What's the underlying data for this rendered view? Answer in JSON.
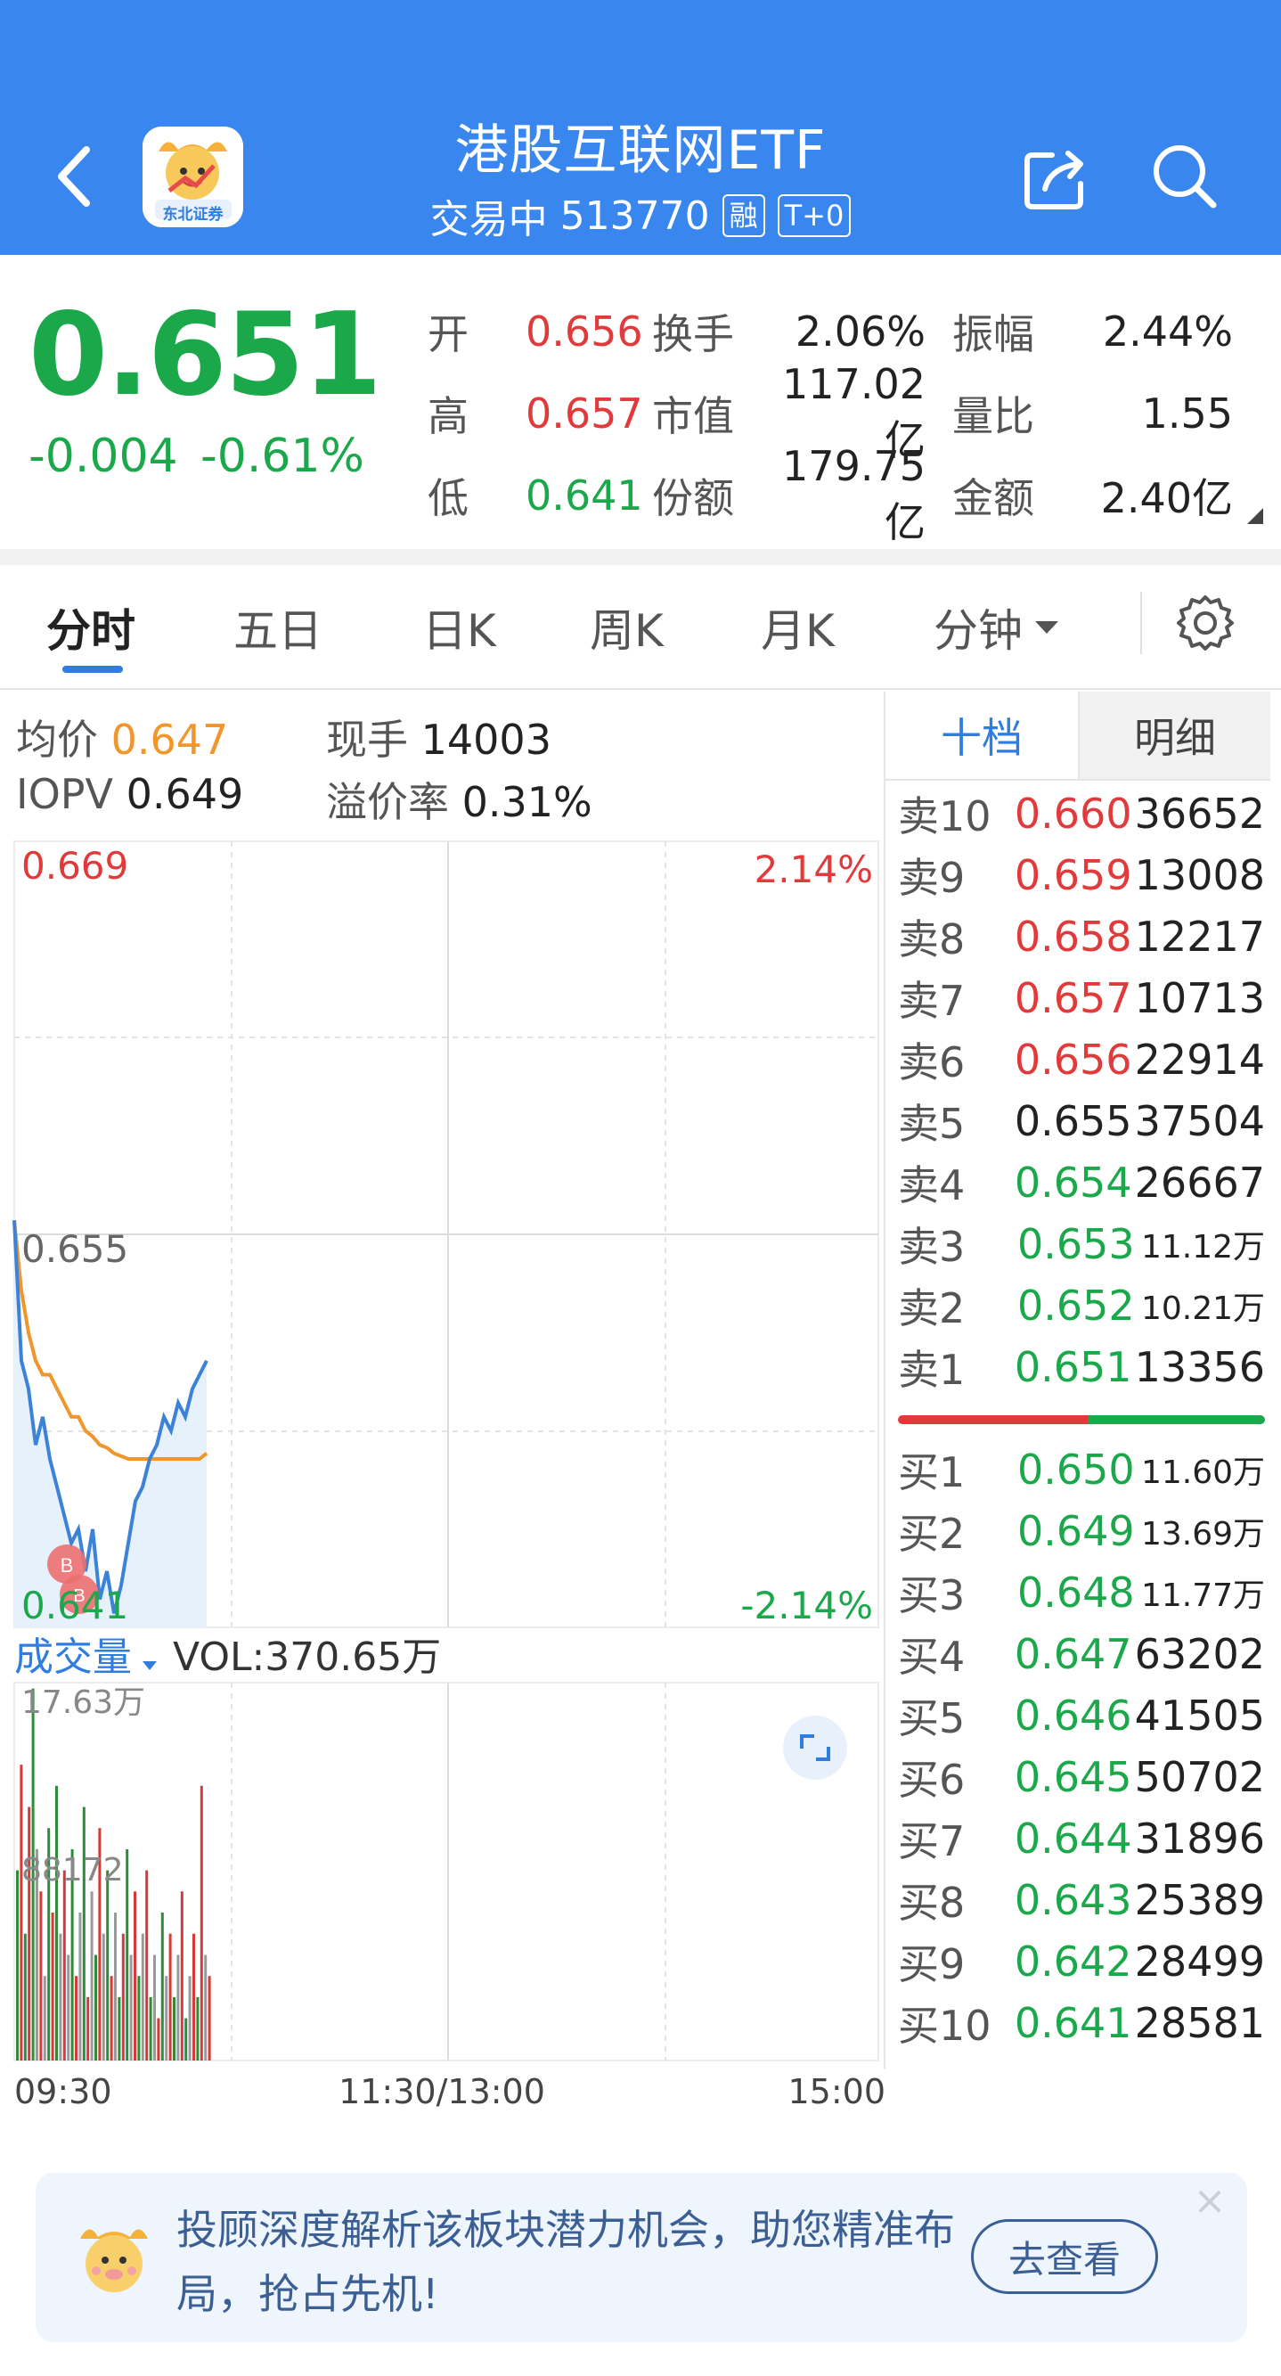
{
  "header": {
    "title": "港股互联网ETF",
    "status": "交易中",
    "code": "513770",
    "tag_margin": "融",
    "tag_t0": "T+0",
    "logo_text": "东北证券",
    "bg_color": "#3a86ef"
  },
  "quote": {
    "price": "0.651",
    "change": "-0.004",
    "change_pct": "-0.61%",
    "rows": [
      {
        "k1": "开",
        "v1": "0.656",
        "v1_color": "red",
        "k2": "换手",
        "v2": "2.06%",
        "k3": "振幅",
        "v3": "2.44%"
      },
      {
        "k1": "高",
        "v1": "0.657",
        "v1_color": "red",
        "k2": "市值",
        "v2": "117.02亿",
        "k3": "量比",
        "v3": "1.55"
      },
      {
        "k1": "低",
        "v1": "0.641",
        "v1_color": "green",
        "k2": "份额",
        "v2": "179.75亿",
        "k3": "金额",
        "v3": "2.40亿"
      }
    ]
  },
  "tabs": [
    "分时",
    "五日",
    "日K",
    "周K",
    "月K",
    "分钟"
  ],
  "tabs_active": "分时",
  "intraday": {
    "avg_label": "均价",
    "avg_value": "0.647",
    "hand_label": "现手",
    "hand_value": "14003",
    "iopv_label": "IOPV",
    "iopv_value": "0.649",
    "premium_label": "溢价率",
    "premium_value": "0.31%",
    "price_high": "0.669",
    "price_mid": "0.655",
    "price_low": "0.641",
    "pct_high": "2.14%",
    "pct_low": "-2.14%",
    "volume_label": "成交量",
    "volume_value": "VOL:370.65万",
    "vol_max": "17.63万",
    "vol_mid": "88172",
    "time_start": "09:30",
    "time_mid": "11:30/13:00",
    "time_end": "15:00",
    "marker": "B"
  },
  "chart_data": {
    "type": "line",
    "x_range": [
      "09:30",
      "15:00"
    ],
    "ylim": [
      0.641,
      0.669
    ],
    "reference_price": 0.655,
    "series": [
      {
        "name": "",
        "color": "#3b82d8",
        "values": [
          0.6555,
          0.6505,
          0.6495,
          0.6475,
          0.6485,
          0.647,
          0.646,
          0.645,
          0.644,
          0.6445,
          0.643,
          0.6445,
          0.642,
          0.643,
          0.6415,
          0.6425,
          0.644,
          0.6455,
          0.646,
          0.647,
          0.6475,
          0.6485,
          0.648,
          0.649,
          0.6485,
          0.6495,
          0.65,
          0.6505
        ]
      },
      {
        "name": "",
        "color": "#f0962d",
        "values": [
          0.6555,
          0.653,
          0.6515,
          0.6505,
          0.65,
          0.65,
          0.6495,
          0.649,
          0.6485,
          0.6485,
          0.648,
          0.6478,
          0.6475,
          0.6474,
          0.6472,
          0.6471,
          0.647,
          0.647,
          0.647,
          0.647,
          0.647,
          0.647,
          0.647,
          0.647,
          0.647,
          0.647,
          0.647,
          0.6472
        ]
      }
    ],
    "volume": [
      9,
      14,
      6,
      12,
      17.6,
      10,
      8,
      4,
      11,
      7,
      13,
      6,
      9,
      5,
      10,
      4,
      7,
      12,
      3,
      8,
      5,
      11,
      6,
      9,
      4,
      7,
      3,
      6,
      10,
      5,
      8,
      4,
      6,
      9,
      3,
      5,
      2,
      7,
      4,
      6,
      3,
      5,
      8,
      2,
      4,
      6,
      3,
      13,
      5,
      4
    ],
    "volume_colors": [
      "g",
      "r",
      "g",
      "r",
      "g",
      "gr",
      "r",
      "gr",
      "g",
      "r",
      "g",
      "gr",
      "r",
      "gr",
      "g",
      "r",
      "gr",
      "g",
      "r",
      "gr",
      "g",
      "r",
      "gr",
      "g",
      "r",
      "gr",
      "g",
      "r",
      "g",
      "gr",
      "r",
      "g",
      "gr",
      "r",
      "g",
      "gr",
      "r",
      "g",
      "gr",
      "r",
      "g",
      "gr",
      "r",
      "g",
      "gr",
      "r",
      "g",
      "r",
      "gr",
      "r"
    ]
  },
  "orderbook": {
    "tab_active": "十档",
    "tab_inactive": "明细",
    "asks": [
      {
        "label": "卖10",
        "price": "0.660",
        "color": "red",
        "vol": "36652"
      },
      {
        "label": "卖9",
        "price": "0.659",
        "color": "red",
        "vol": "13008"
      },
      {
        "label": "卖8",
        "price": "0.658",
        "color": "red",
        "vol": "12217"
      },
      {
        "label": "卖7",
        "price": "0.657",
        "color": "red",
        "vol": "10713"
      },
      {
        "label": "卖6",
        "price": "0.656",
        "color": "red",
        "vol": "22914"
      },
      {
        "label": "卖5",
        "price": "0.655",
        "color": "black",
        "vol": "37504"
      },
      {
        "label": "卖4",
        "price": "0.654",
        "color": "green",
        "vol": "26667"
      },
      {
        "label": "卖3",
        "price": "0.653",
        "color": "green",
        "vol": "11.12万"
      },
      {
        "label": "卖2",
        "price": "0.652",
        "color": "green",
        "vol": "10.21万"
      },
      {
        "label": "卖1",
        "price": "0.651",
        "color": "green",
        "vol": "13356"
      }
    ],
    "bids": [
      {
        "label": "买1",
        "price": "0.650",
        "color": "green",
        "vol": "11.60万"
      },
      {
        "label": "买2",
        "price": "0.649",
        "color": "green",
        "vol": "13.69万"
      },
      {
        "label": "买3",
        "price": "0.648",
        "color": "green",
        "vol": "11.77万"
      },
      {
        "label": "买4",
        "price": "0.647",
        "color": "green",
        "vol": "63202"
      },
      {
        "label": "买5",
        "price": "0.646",
        "color": "green",
        "vol": "41505"
      },
      {
        "label": "买6",
        "price": "0.645",
        "color": "green",
        "vol": "50702"
      },
      {
        "label": "买7",
        "price": "0.644",
        "color": "green",
        "vol": "31896"
      },
      {
        "label": "买8",
        "price": "0.643",
        "color": "green",
        "vol": "25389"
      },
      {
        "label": "买9",
        "price": "0.642",
        "color": "green",
        "vol": "28499"
      },
      {
        "label": "买10",
        "price": "0.641",
        "color": "green",
        "vol": "28581"
      }
    ],
    "ratio_sell": 0.52
  },
  "banner": {
    "text": "投顾深度解析该板块潜力机会，助您精准布局，抢占先机!",
    "cta": "去查看",
    "close": "×"
  },
  "colors": {
    "up": "#e03a3a",
    "down": "#1aa84a",
    "accent": "#2f7de1"
  }
}
